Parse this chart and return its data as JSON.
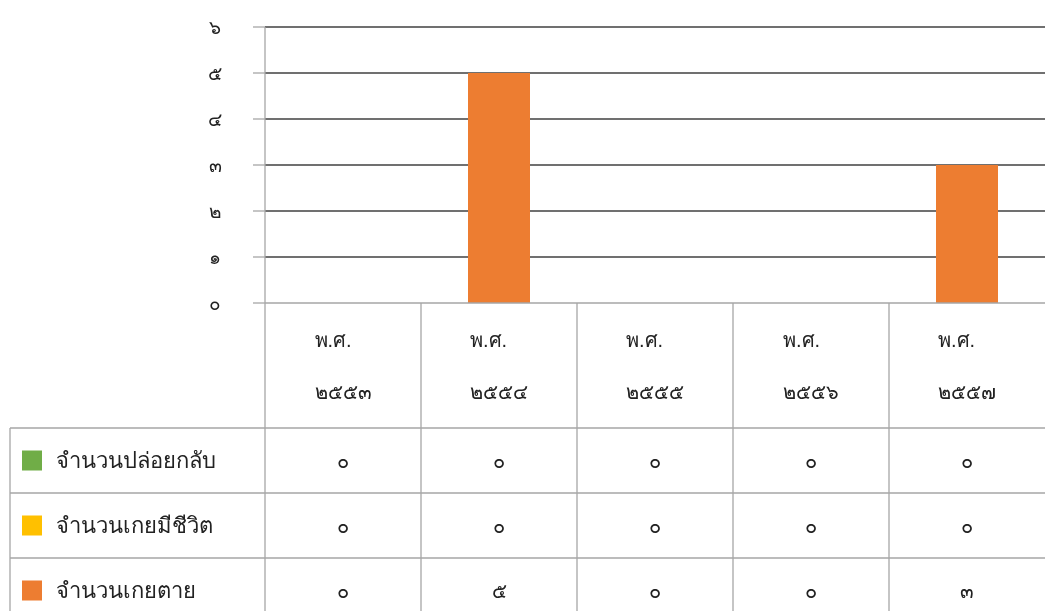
{
  "chart_data": {
    "type": "bar",
    "stacked": true,
    "categories": [
      "พ.ศ. ๒๕๕๓",
      "พ.ศ. ๒๕๕๔",
      "พ.ศ. ๒๕๕๕",
      "พ.ศ. ๒๕๕๖",
      "พ.ศ. ๒๕๕๗"
    ],
    "series": [
      {
        "name": "จำนวนปล่อยกลับ",
        "color": "#70ad47",
        "values": [
          0,
          0,
          0,
          0,
          0
        ],
        "value_labels": [
          "๐",
          "๐",
          "๐",
          "๐",
          "๐"
        ]
      },
      {
        "name": "จำนวนเกยมีชีวิต",
        "color": "#ffc000",
        "values": [
          0,
          0,
          0,
          0,
          0
        ],
        "value_labels": [
          "๐",
          "๐",
          "๐",
          "๐",
          "๐"
        ]
      },
      {
        "name": "จำนวนเกยตาย",
        "color": "#ed7d31",
        "values": [
          0,
          5,
          0,
          0,
          3
        ],
        "value_labels": [
          "๐",
          "๕",
          "๐",
          "๐",
          "๓"
        ]
      }
    ],
    "ylim": [
      0,
      6
    ],
    "yticks": [
      {
        "value": 0,
        "label": "๐"
      },
      {
        "value": 1,
        "label": "๑"
      },
      {
        "value": 2,
        "label": "๒"
      },
      {
        "value": 3,
        "label": "๓"
      },
      {
        "value": 4,
        "label": "๔"
      },
      {
        "value": 5,
        "label": "๕"
      },
      {
        "value": 6,
        "label": "๖"
      }
    ],
    "grid": "y",
    "legend": "bottom"
  }
}
